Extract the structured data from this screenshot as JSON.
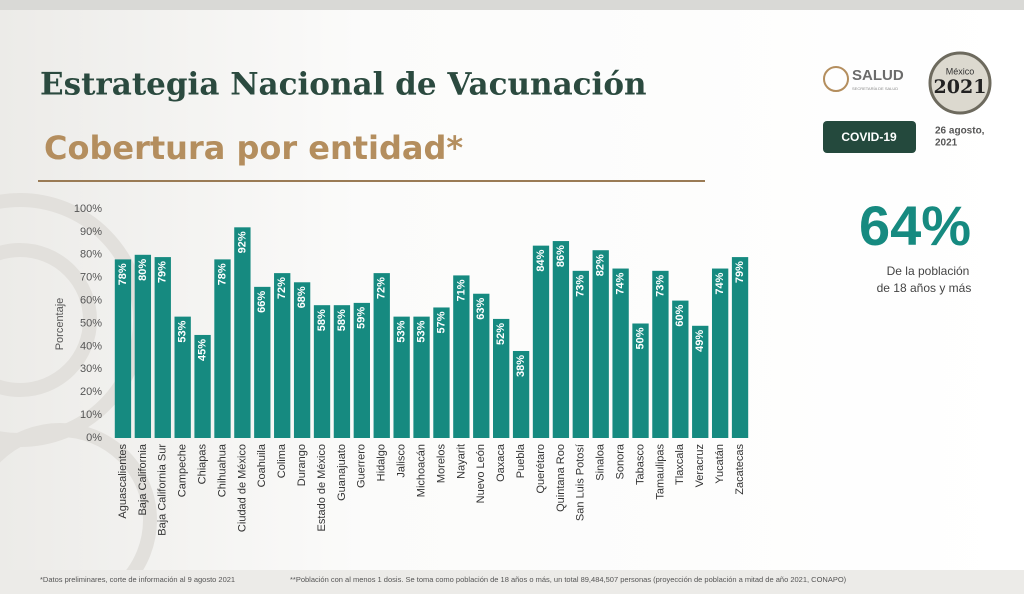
{
  "header": {
    "salud": "SALUD",
    "salud_sub": "SECRETARÍA DE SALUD",
    "logo_top": "México",
    "logo_year": "2021",
    "badge": "COVID-19",
    "date": [
      "26 agosto,",
      "2021"
    ]
  },
  "highlight": {
    "figure": "64%",
    "caption": [
      "De la población",
      "de 18 años y más"
    ]
  },
  "footnotes": [
    "*Datos preliminares, corte de información al 9 agosto  2021",
    "**Población con al menos 1 dosis. Se toma como población de 18 años o más, un total 89,484,507 personas (proyección de población a mitad de año 2021, CONAPO)"
  ],
  "chart_data": {
    "type": "bar",
    "title": "Estrategia Nacional de Vacunación",
    "subtitle": "Cobertura por entidad*",
    "ylabel": "Porcentaje",
    "categories": [
      "Aguascalientes",
      "Baja California",
      "Baja California Sur",
      "Campeche",
      "Chiapas",
      "Chihuahua",
      "Ciudad de México",
      "Coahuila",
      "Colima",
      "Durango",
      "Estado de México",
      "Guanajuato",
      "Guerrero",
      "Hidalgo",
      "Jalisco",
      "Michoacán",
      "Morelos",
      "Nayarit",
      "Nuevo León",
      "Oaxaca",
      "Puebla",
      "Querétaro",
      "Quintana Roo",
      "San Luis Potosí",
      "Sinaloa",
      "Sonora",
      "Tabasco",
      "Tamaulipas",
      "Tlaxcala",
      "Veracruz",
      "Yucatán",
      "Zacatecas"
    ],
    "values": [
      78,
      80,
      79,
      53,
      45,
      78,
      92,
      66,
      72,
      68,
      58,
      58,
      59,
      72,
      53,
      53,
      57,
      71,
      63,
      52,
      38,
      84,
      86,
      73,
      82,
      74,
      50,
      73,
      60,
      49,
      74,
      79
    ],
    "value_labels": [
      "78%",
      "80%",
      "79%",
      "53%",
      "45%",
      "78%",
      "92%",
      "66%",
      "72%",
      "68%",
      "58%",
      "58%",
      "59%",
      "72%",
      "53%",
      "53%",
      "57%",
      "71%",
      "63%",
      "52%",
      "38%",
      "84%",
      "86%",
      "73%",
      "82%",
      "74%",
      "50%",
      "73%",
      "60%",
      "49%",
      "74%",
      "79%"
    ],
    "color": "#168a80",
    "ylim": [
      0,
      100
    ],
    "yticks": [
      {
        "value": 0,
        "label": "0%"
      },
      {
        "value": 10,
        "label": "10%"
      },
      {
        "value": 20,
        "label": "20%"
      },
      {
        "value": 30,
        "label": "30%"
      },
      {
        "value": 40,
        "label": "40%"
      },
      {
        "value": 50,
        "label": "50%"
      },
      {
        "value": 60,
        "label": "60%"
      },
      {
        "value": 70,
        "label": "70%"
      },
      {
        "value": 80,
        "label": "80%"
      },
      {
        "value": 90,
        "label": "90%"
      },
      {
        "value": 100,
        "label": "100%"
      }
    ],
    "grid": false
  }
}
